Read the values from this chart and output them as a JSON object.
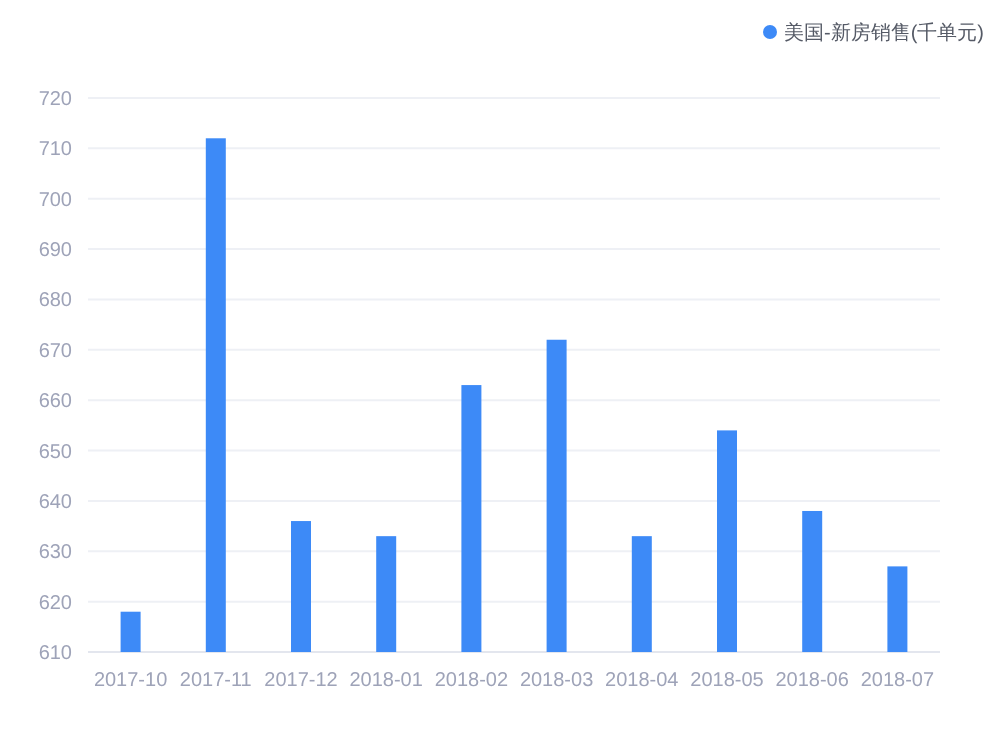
{
  "chart_data": {
    "type": "bar",
    "categories": [
      "2017-10",
      "2017-11",
      "2017-12",
      "2018-01",
      "2018-02",
      "2018-03",
      "2018-04",
      "2018-05",
      "2018-06",
      "2018-07"
    ],
    "series": [
      {
        "name": "美国-新房销售(千单元)",
        "color": "#3d8af7",
        "values": [
          618,
          712,
          636,
          633,
          663,
          672,
          633,
          654,
          638,
          627
        ]
      }
    ],
    "ylim": [
      610,
      720
    ],
    "yticks": [
      610,
      620,
      630,
      640,
      650,
      660,
      670,
      680,
      690,
      700,
      710,
      720
    ],
    "grid": "y",
    "legend": "top right"
  }
}
